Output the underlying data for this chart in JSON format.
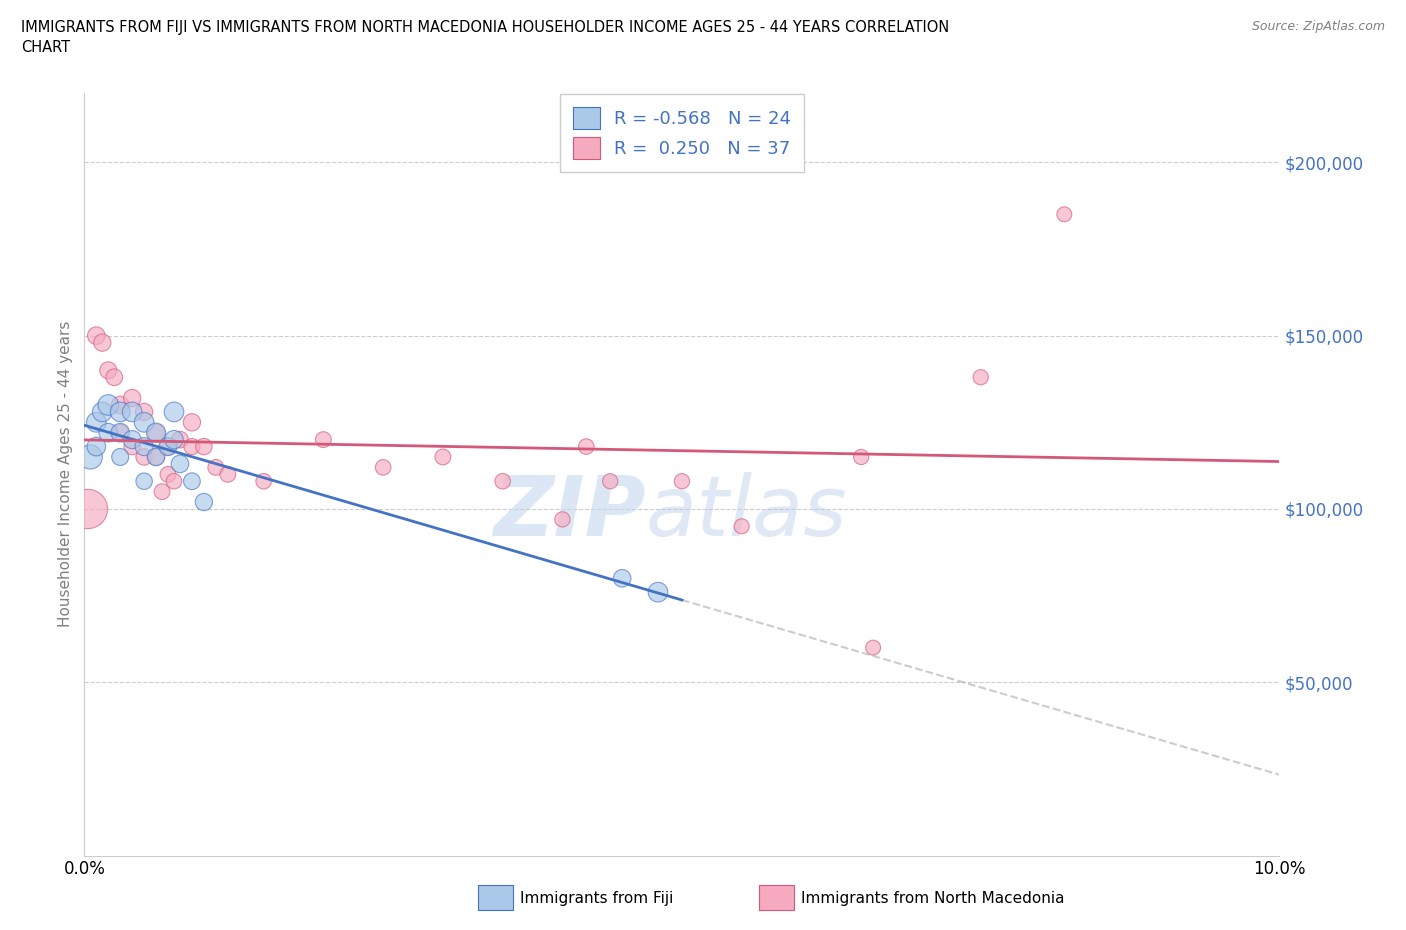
{
  "title_line1": "IMMIGRANTS FROM FIJI VS IMMIGRANTS FROM NORTH MACEDONIA HOUSEHOLDER INCOME AGES 25 - 44 YEARS CORRELATION",
  "title_line2": "CHART",
  "source": "Source: ZipAtlas.com",
  "ylabel": "Householder Income Ages 25 - 44 years",
  "legend_fiji_label": "Immigrants from Fiji",
  "legend_mac_label": "Immigrants from North Macedonia",
  "fiji_R": "-0.568",
  "fiji_N": "24",
  "mac_R": "0.250",
  "mac_N": "37",
  "fiji_color": "#aac8e8",
  "mac_color": "#f5aabf",
  "fiji_line_color": "#4472c4",
  "mac_line_color": "#d45878",
  "xlim": [
    0.0,
    0.1
  ],
  "ylim": [
    0,
    220000
  ],
  "yticks": [
    50000,
    100000,
    150000,
    200000
  ],
  "xticks": [
    0.0,
    0.02,
    0.04,
    0.06,
    0.08,
    0.1
  ],
  "fiji_x": [
    0.0005,
    0.001,
    0.001,
    0.0015,
    0.002,
    0.002,
    0.003,
    0.003,
    0.003,
    0.004,
    0.004,
    0.005,
    0.005,
    0.005,
    0.006,
    0.006,
    0.007,
    0.0075,
    0.0075,
    0.008,
    0.009,
    0.01,
    0.045,
    0.048
  ],
  "fiji_y": [
    115000,
    125000,
    118000,
    128000,
    130000,
    122000,
    128000,
    122000,
    115000,
    128000,
    120000,
    125000,
    118000,
    108000,
    122000,
    115000,
    118000,
    128000,
    120000,
    113000,
    108000,
    102000,
    80000,
    76000
  ],
  "fiji_size": [
    300,
    200,
    180,
    200,
    220,
    180,
    200,
    180,
    150,
    200,
    170,
    200,
    170,
    140,
    190,
    160,
    170,
    200,
    175,
    160,
    145,
    155,
    160,
    200
  ],
  "mac_x": [
    0.0003,
    0.001,
    0.0015,
    0.002,
    0.0025,
    0.003,
    0.003,
    0.004,
    0.004,
    0.005,
    0.005,
    0.006,
    0.006,
    0.0065,
    0.007,
    0.007,
    0.0075,
    0.008,
    0.009,
    0.009,
    0.01,
    0.011,
    0.012,
    0.015,
    0.02,
    0.025,
    0.03,
    0.035,
    0.04,
    0.042,
    0.044,
    0.05,
    0.055,
    0.065,
    0.066,
    0.075,
    0.082
  ],
  "mac_y": [
    100000,
    150000,
    148000,
    140000,
    138000,
    130000,
    122000,
    132000,
    118000,
    128000,
    115000,
    122000,
    115000,
    105000,
    118000,
    110000,
    108000,
    120000,
    125000,
    118000,
    118000,
    112000,
    110000,
    108000,
    120000,
    112000,
    115000,
    108000,
    97000,
    118000,
    108000,
    108000,
    95000,
    115000,
    60000,
    138000,
    185000
  ],
  "mac_size": [
    800,
    160,
    155,
    150,
    145,
    160,
    140,
    155,
    140,
    155,
    140,
    155,
    140,
    130,
    145,
    130,
    125,
    145,
    155,
    135,
    140,
    130,
    130,
    125,
    130,
    125,
    130,
    125,
    120,
    125,
    120,
    120,
    118,
    120,
    115,
    120,
    115
  ]
}
